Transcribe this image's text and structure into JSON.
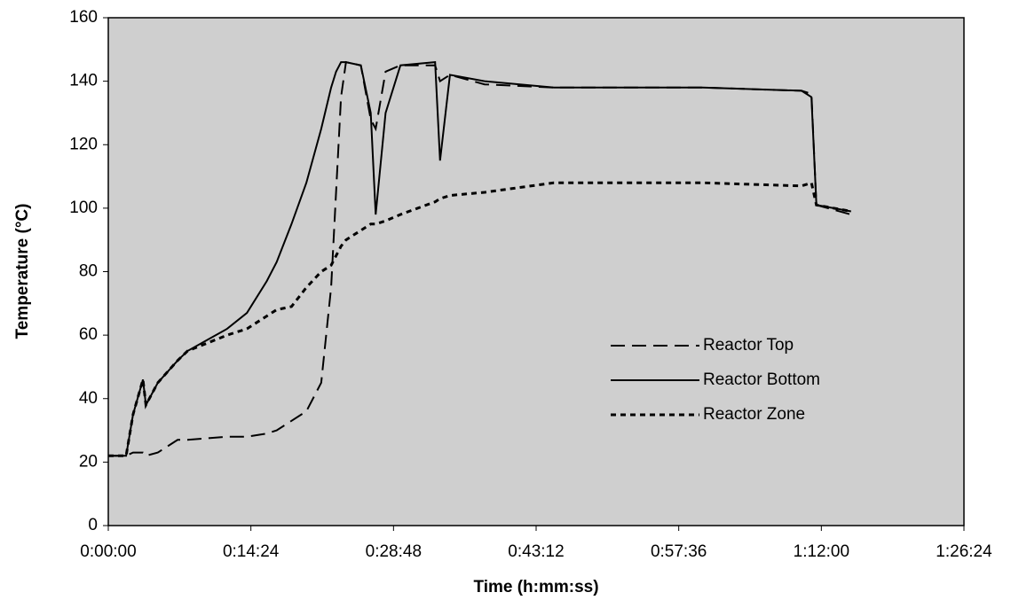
{
  "chart_data": {
    "type": "line",
    "xlabel": "Time (h:mm:ss)",
    "ylabel": "Temperature (°C)",
    "x": [
      0,
      1.8,
      2.5,
      3.5,
      3.8,
      5,
      7,
      8,
      12,
      14,
      16,
      17,
      18.5,
      20,
      21.5,
      22.5,
      23,
      23.5,
      24,
      25.5,
      26.5,
      27,
      28,
      29.5,
      33,
      33.5,
      34.5,
      38,
      45,
      60,
      70,
      71,
      71.5,
      75
    ],
    "series": [
      {
        "name": "Reactor Top",
        "color": "#000000",
        "dash": "dashed",
        "values": [
          22,
          22,
          23,
          23,
          22,
          23,
          27,
          27,
          28,
          28,
          29,
          30,
          33,
          36,
          45,
          75,
          105,
          135,
          146,
          145,
          128,
          125,
          143,
          145,
          145,
          140,
          142,
          139,
          138,
          138,
          137,
          136,
          101,
          98
        ]
      },
      {
        "name": "Reactor Bottom",
        "color": "#000000",
        "dash": "solid",
        "values": [
          22,
          22,
          35,
          46,
          38,
          45,
          52,
          55,
          62,
          67,
          77,
          83,
          95,
          108,
          125,
          138,
          143,
          146,
          146,
          145,
          130,
          98,
          130,
          145,
          146,
          115,
          142,
          140,
          138,
          138,
          137,
          135,
          101,
          99
        ]
      },
      {
        "name": "Reactor Zone",
        "color": "#000000",
        "dash": "dotted",
        "values": [
          22,
          22,
          35,
          46,
          38,
          45,
          52,
          55,
          60,
          62,
          66,
          68,
          69,
          75,
          80,
          82,
          85,
          88,
          90,
          93,
          95,
          95,
          96,
          98,
          102,
          103,
          104,
          105,
          108,
          108,
          107,
          108,
          101,
          99
        ]
      }
    ],
    "xlim": [
      0,
      86.4
    ],
    "xticks": [
      {
        "value": 0,
        "label": "0:00:00"
      },
      {
        "value": 14.4,
        "label": "0:14:24"
      },
      {
        "value": 28.8,
        "label": "0:28:48"
      },
      {
        "value": 43.2,
        "label": "0:43:12"
      },
      {
        "value": 57.6,
        "label": "0:57:36"
      },
      {
        "value": 72,
        "label": "1:12:00"
      },
      {
        "value": 86.4,
        "label": "1:26:24"
      }
    ],
    "ylim": [
      0,
      160
    ],
    "yticks": [
      0,
      20,
      40,
      60,
      80,
      100,
      120,
      140,
      160
    ],
    "grid": false,
    "legend": "right",
    "plot_background": "#cfcfcf"
  }
}
